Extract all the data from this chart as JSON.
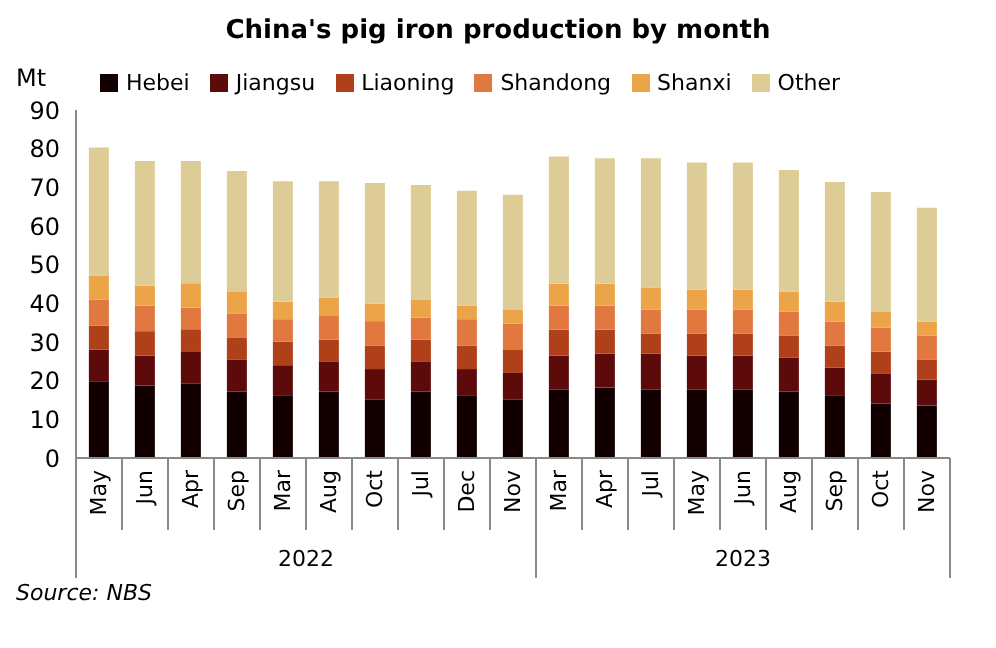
{
  "chart_data": {
    "type": "bar",
    "title": "China's pig iron production by month",
    "ylabel": "Mt",
    "stacked": true,
    "legend": "top",
    "grid": false,
    "categories": [
      "May",
      "Jun",
      "Apr",
      "Sep",
      "Mar",
      "Aug",
      "Oct",
      "Jul",
      "Dec",
      "Nov",
      "Mar",
      "Apr",
      "Jul",
      "May",
      "Jun",
      "Aug",
      "Sep",
      "Oct",
      "Nov"
    ],
    "ylim": [
      0,
      90
    ],
    "yticks": [
      0,
      10,
      20,
      30,
      40,
      50,
      60,
      70,
      80,
      90
    ],
    "series": [
      {
        "name": "Hebei",
        "color": "#120000",
        "values": [
          19.7,
          18.7,
          19.2,
          17.2,
          16.2,
          17.2,
          15.1,
          17.2,
          16.2,
          15.1,
          17.7,
          18.2,
          17.7,
          17.7,
          17.7,
          17.2,
          16.2,
          14.1,
          13.6
        ]
      },
      {
        "name": "Jiangsu",
        "color": "#5c0a0a",
        "values": [
          8.3,
          7.8,
          8.4,
          8.3,
          7.8,
          7.8,
          7.9,
          7.8,
          6.8,
          6.9,
          8.8,
          8.8,
          9.3,
          8.8,
          8.8,
          8.8,
          7.2,
          7.8,
          6.7
        ]
      },
      {
        "name": "Liaoning",
        "color": "#b0401a",
        "values": [
          6.2,
          6.3,
          5.7,
          5.7,
          6.1,
          5.6,
          6.1,
          5.6,
          6.1,
          6.1,
          6.7,
          6.2,
          5.2,
          5.7,
          5.7,
          5.7,
          5.7,
          5.6,
          5.2
        ]
      },
      {
        "name": "Shandong",
        "color": "#e07840",
        "values": [
          6.8,
          6.6,
          5.6,
          6.2,
          5.8,
          6.3,
          6.3,
          5.7,
          6.8,
          6.7,
          6.2,
          6.2,
          6.2,
          6.2,
          6.2,
          6.2,
          6.2,
          6.2,
          6.2
        ]
      },
      {
        "name": "Shanxi",
        "color": "#eca448",
        "values": [
          6.2,
          5.2,
          6.3,
          5.7,
          4.5,
          4.6,
          4.5,
          4.7,
          3.5,
          3.5,
          5.7,
          5.7,
          5.7,
          5.1,
          5.1,
          5.1,
          5.1,
          4.2,
          3.6
        ]
      },
      {
        "name": "Other",
        "color": "#ddcc96",
        "values": [
          33.1,
          32.2,
          31.6,
          31.1,
          31.2,
          30.1,
          31.2,
          29.6,
          29.7,
          29.8,
          32.9,
          32.4,
          33.4,
          32.9,
          32.9,
          31.5,
          31.0,
          30.9,
          29.4
        ]
      }
    ],
    "annotations": [
      "2022",
      "2023",
      "Source: NBS"
    ]
  }
}
